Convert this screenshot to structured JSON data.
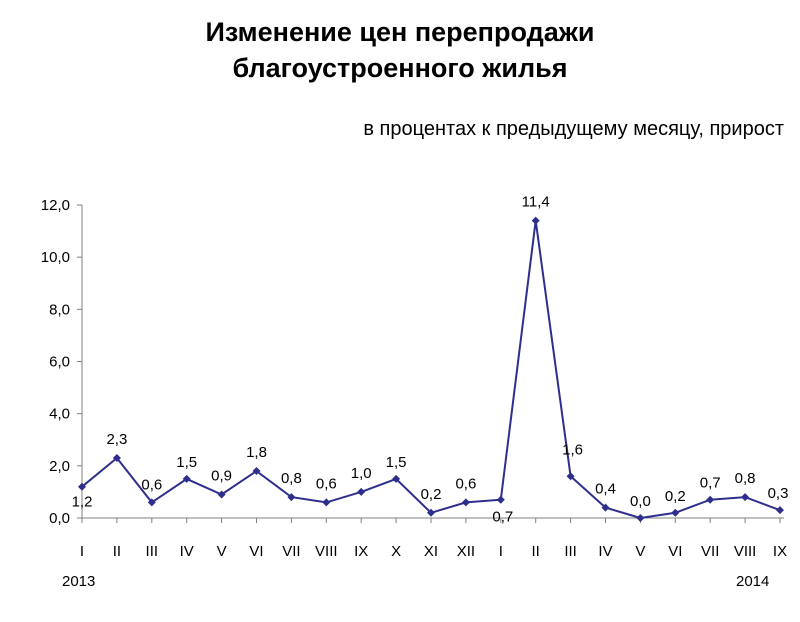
{
  "chart_data": {
    "type": "line",
    "title": "Изменение цен перепродажи благоустроенного жилья",
    "title_lines": [
      "Изменение цен перепродажи",
      "благоустроенного жилья"
    ],
    "subtitle": "в процентах к предыдущему месяцу, прирост",
    "ylim": [
      0,
      12
    ],
    "y_ticks": [
      "0,0",
      "2,0",
      "4,0",
      "6,0",
      "8,0",
      "10,0",
      "12,0"
    ],
    "grid": false,
    "categories": [
      "I",
      "II",
      "III",
      "IV",
      "V",
      "VI",
      "VII",
      "VIII",
      "IX",
      "X",
      "XI",
      "XII",
      "I",
      "II",
      "III",
      "IV",
      "V",
      "VI",
      "VII",
      "VIII",
      "IX"
    ],
    "values": [
      1.2,
      2.3,
      0.6,
      1.5,
      0.9,
      1.8,
      0.8,
      0.6,
      1.0,
      1.5,
      0.2,
      0.6,
      0.7,
      11.4,
      1.6,
      0.4,
      0.0,
      0.2,
      0.7,
      0.8,
      0.3
    ],
    "value_labels": [
      "1,2",
      "2,3",
      "0,6",
      "1,5",
      "0,9",
      "1,8",
      "0,8",
      "0,6",
      "1,0",
      "1,5",
      "0,2",
      "0,6",
      "0,7",
      "11,4",
      "1,6",
      "0,4",
      "0,0",
      "0,2",
      "0,7",
      "0,8",
      "0,3"
    ],
    "year_labels": [
      "2013",
      "2014"
    ],
    "line_color": "#2e2e8c"
  }
}
